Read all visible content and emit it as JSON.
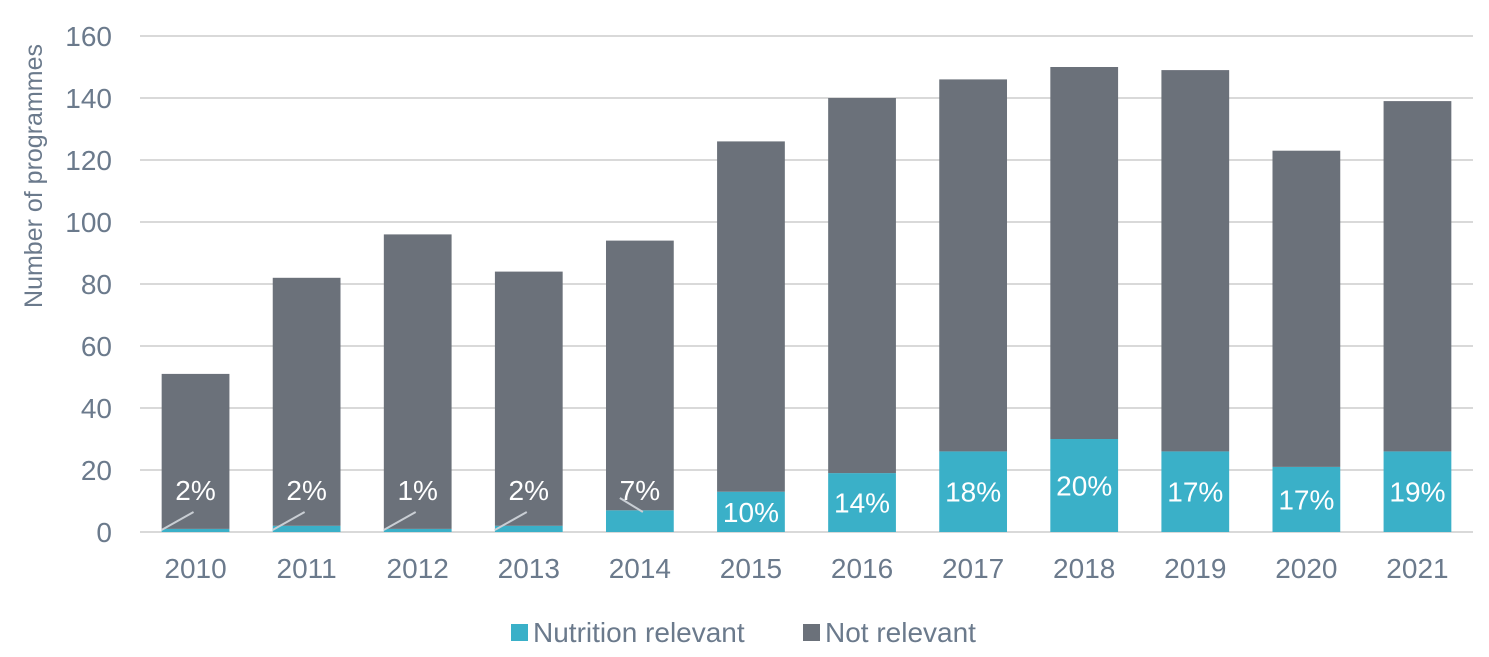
{
  "chart_data": {
    "type": "bar",
    "stacked": true,
    "title": "",
    "xlabel": "",
    "ylabel": "Number of programmes",
    "ylim": [
      0,
      160
    ],
    "yticks": [
      0,
      20,
      40,
      60,
      80,
      100,
      120,
      140,
      160
    ],
    "grid": true,
    "legend_position": "bottom",
    "categories": [
      "2010",
      "2011",
      "2012",
      "2013",
      "2014",
      "2015",
      "2016",
      "2017",
      "2018",
      "2019",
      "2020",
      "2021"
    ],
    "series": [
      {
        "name": "Nutrition relevant",
        "color": "#3ab0c8",
        "values": [
          1,
          2,
          1,
          2,
          7,
          13,
          19,
          26,
          30,
          26,
          21,
          26
        ]
      },
      {
        "name": "Not relevant",
        "color": "#6b717a",
        "values": [
          50,
          80,
          95,
          82,
          87,
          113,
          121,
          120,
          120,
          123,
          102,
          113
        ]
      }
    ],
    "data_labels": [
      "2%",
      "2%",
      "1%",
      "2%",
      "7%",
      "10%",
      "14%",
      "18%",
      "20%",
      "17%",
      "17%",
      "19%"
    ]
  }
}
